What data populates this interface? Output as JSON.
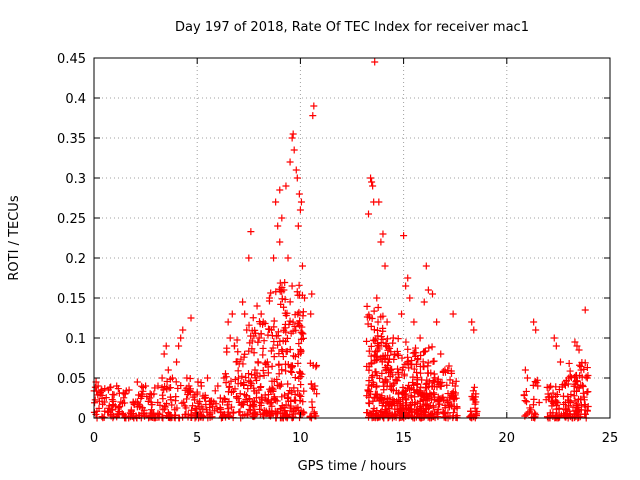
{
  "chart_data": {
    "type": "scatter",
    "title": "Day 197 of 2018, Rate Of TEC Index for receiver mac1",
    "xlabel": "GPS time / hours",
    "ylabel": "ROTI / TECUs",
    "xlim": [
      0,
      25
    ],
    "ylim": [
      0,
      0.45
    ],
    "x_ticks": [
      0,
      5,
      10,
      15,
      20,
      25
    ],
    "y_ticks": [
      0,
      0.05,
      0.1,
      0.15,
      0.2,
      0.25,
      0.3,
      0.35,
      0.4,
      0.45
    ],
    "x_tick_labels": [
      "0",
      "5",
      "10",
      "15",
      "20",
      "25"
    ],
    "y_tick_labels": [
      "0",
      "0.05",
      "0.1",
      "0.15",
      "0.2",
      "0.25",
      "0.3",
      "0.35",
      "0.4",
      "0.45"
    ],
    "grid": true,
    "marker": "+",
    "marker_color": "#ff0000",
    "series": [
      {
        "points": [
          [
            0.1,
            0.045
          ],
          [
            0.2,
            0.04
          ],
          [
            0.3,
            0.03
          ],
          [
            0.5,
            0.02
          ],
          [
            0.7,
            0.035
          ],
          [
            0.9,
            0.01
          ],
          [
            1.1,
            0.04
          ],
          [
            1.3,
            0.02
          ],
          [
            1.5,
            0.03
          ],
          [
            1.7,
            0.035
          ],
          [
            1.9,
            0.02
          ],
          [
            2.1,
            0.045
          ],
          [
            2.3,
            0.03
          ],
          [
            2.5,
            0.04
          ],
          [
            2.7,
            0.025
          ],
          [
            2.9,
            0.03
          ],
          [
            3.1,
            0.04
          ],
          [
            3.3,
            0.05
          ],
          [
            3.4,
            0.08
          ],
          [
            3.5,
            0.09
          ],
          [
            3.6,
            0.06
          ],
          [
            3.8,
            0.05
          ],
          [
            4.0,
            0.07
          ],
          [
            4.1,
            0.09
          ],
          [
            4.2,
            0.1
          ],
          [
            4.3,
            0.11
          ],
          [
            4.5,
            0.05
          ],
          [
            4.6,
            0.04
          ],
          [
            4.7,
            0.125
          ],
          [
            5.0,
            0.03
          ],
          [
            5.2,
            0.04
          ],
          [
            5.5,
            0.05
          ],
          [
            5.8,
            0.02
          ],
          [
            6.0,
            0.04
          ],
          [
            6.3,
            0.05
          ],
          [
            6.5,
            0.12
          ],
          [
            6.6,
            0.1
          ],
          [
            6.7,
            0.13
          ],
          [
            6.8,
            0.09
          ],
          [
            7.0,
            0.05
          ],
          [
            7.2,
            0.145
          ],
          [
            7.3,
            0.13
          ],
          [
            7.4,
            0.11
          ],
          [
            7.5,
            0.2
          ],
          [
            7.6,
            0.233
          ],
          [
            7.8,
            0.06
          ],
          [
            7.9,
            0.14
          ],
          [
            8.0,
            0.1
          ],
          [
            8.1,
            0.13
          ],
          [
            8.2,
            0.12
          ],
          [
            8.4,
            0.07
          ],
          [
            8.5,
            0.15
          ],
          [
            8.6,
            0.11
          ],
          [
            8.7,
            0.2
          ],
          [
            8.8,
            0.27
          ],
          [
            8.9,
            0.24
          ],
          [
            9.0,
            0.285
          ],
          [
            9.0,
            0.22
          ],
          [
            9.1,
            0.25
          ],
          [
            9.2,
            0.16
          ],
          [
            9.3,
            0.29
          ],
          [
            9.4,
            0.2
          ],
          [
            9.5,
            0.32
          ],
          [
            9.6,
            0.35
          ],
          [
            9.65,
            0.355
          ],
          [
            9.7,
            0.335
          ],
          [
            9.8,
            0.31
          ],
          [
            9.85,
            0.3
          ],
          [
            9.9,
            0.24
          ],
          [
            9.95,
            0.28
          ],
          [
            10.0,
            0.26
          ],
          [
            10.05,
            0.27
          ],
          [
            10.1,
            0.19
          ],
          [
            10.2,
            0.15
          ],
          [
            10.5,
            0.13
          ],
          [
            10.55,
            0.155
          ],
          [
            10.6,
            0.378
          ],
          [
            10.65,
            0.39
          ],
          [
            10.7,
            0.04
          ],
          [
            13.3,
            0.255
          ],
          [
            13.4,
            0.3
          ],
          [
            13.45,
            0.295
          ],
          [
            13.5,
            0.29
          ],
          [
            13.55,
            0.27
          ],
          [
            13.6,
            0.445
          ],
          [
            13.7,
            0.15
          ],
          [
            13.8,
            0.27
          ],
          [
            13.9,
            0.22
          ],
          [
            14.0,
            0.23
          ],
          [
            14.1,
            0.19
          ],
          [
            14.2,
            0.12
          ],
          [
            14.5,
            0.1
          ],
          [
            14.7,
            0.08
          ],
          [
            14.9,
            0.13
          ],
          [
            15.0,
            0.228
          ],
          [
            15.1,
            0.165
          ],
          [
            15.2,
            0.175
          ],
          [
            15.3,
            0.15
          ],
          [
            15.5,
            0.12
          ],
          [
            15.8,
            0.1
          ],
          [
            16.0,
            0.145
          ],
          [
            16.1,
            0.19
          ],
          [
            16.2,
            0.16
          ],
          [
            16.4,
            0.155
          ],
          [
            16.6,
            0.12
          ],
          [
            16.8,
            0.08
          ],
          [
            17.0,
            0.06
          ],
          [
            17.2,
            0.065
          ],
          [
            17.4,
            0.13
          ],
          [
            17.5,
            0.04
          ],
          [
            18.3,
            0.12
          ],
          [
            18.4,
            0.11
          ],
          [
            18.5,
            0.02
          ],
          [
            20.9,
            0.06
          ],
          [
            21.0,
            0.05
          ],
          [
            21.3,
            0.12
          ],
          [
            21.4,
            0.11
          ],
          [
            21.5,
            0.04
          ],
          [
            22.0,
            0.03
          ],
          [
            22.3,
            0.1
          ],
          [
            22.4,
            0.09
          ],
          [
            22.6,
            0.07
          ],
          [
            23.0,
            0.05
          ],
          [
            23.3,
            0.095
          ],
          [
            23.4,
            0.09
          ],
          [
            23.5,
            0.085
          ],
          [
            23.6,
            0.06
          ],
          [
            23.8,
            0.135
          ],
          [
            23.9,
            0.05
          ]
        ],
        "clusters": [
          [
            0.0,
            3.3,
            0.0,
            0.04,
            140
          ],
          [
            3.3,
            5.2,
            0.0,
            0.05,
            90
          ],
          [
            5.2,
            6.3,
            0.0,
            0.035,
            40
          ],
          [
            6.3,
            7.5,
            0.0,
            0.1,
            70
          ],
          [
            7.5,
            8.5,
            0.0,
            0.13,
            90
          ],
          [
            8.5,
            10.2,
            0.0,
            0.17,
            200
          ],
          [
            10.4,
            10.8,
            0.0,
            0.07,
            20
          ],
          [
            13.2,
            14.0,
            0.0,
            0.14,
            110
          ],
          [
            14.0,
            15.2,
            0.0,
            0.1,
            160
          ],
          [
            15.2,
            16.5,
            0.0,
            0.09,
            160
          ],
          [
            16.5,
            17.6,
            0.0,
            0.06,
            80
          ],
          [
            18.2,
            18.6,
            0.0,
            0.04,
            25
          ],
          [
            20.8,
            21.6,
            0.0,
            0.05,
            25
          ],
          [
            21.9,
            23.0,
            0.0,
            0.05,
            70
          ],
          [
            23.0,
            24.0,
            0.0,
            0.07,
            80
          ]
        ]
      }
    ]
  }
}
